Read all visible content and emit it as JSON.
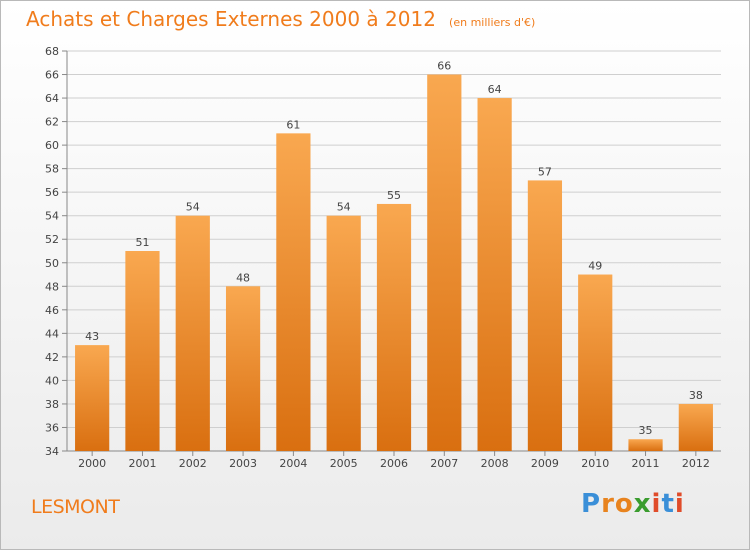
{
  "title": "Achats et Charges Externes 2000 à 2012",
  "unit": "(en milliers d'€)",
  "commune": "LESMONT",
  "logo": {
    "text": "Proxiti",
    "letter_colors": [
      "#3a8fd8",
      "#e8831e",
      "#e8831e",
      "#3a9c2e",
      "#e04c2a",
      "#3a8fd8",
      "#e04c2a"
    ]
  },
  "colors": {
    "bar_light": "#f9a850",
    "bar_dark": "#d96f10",
    "title": "#f07c1c",
    "grid": "#cfcfcf"
  },
  "chart_data": {
    "type": "bar",
    "categories": [
      "2000",
      "2001",
      "2002",
      "2003",
      "2004",
      "2005",
      "2006",
      "2007",
      "2008",
      "2009",
      "2010",
      "2011",
      "2012"
    ],
    "values": [
      43,
      51,
      54,
      48,
      61,
      54,
      55,
      66,
      64,
      57,
      49,
      35,
      38
    ],
    "ylim": [
      34,
      68
    ],
    "yticks": [
      34,
      36,
      38,
      40,
      42,
      44,
      46,
      48,
      50,
      52,
      54,
      56,
      58,
      60,
      62,
      64,
      66,
      68
    ],
    "grid": true,
    "xlabel": "",
    "ylabel": ""
  }
}
